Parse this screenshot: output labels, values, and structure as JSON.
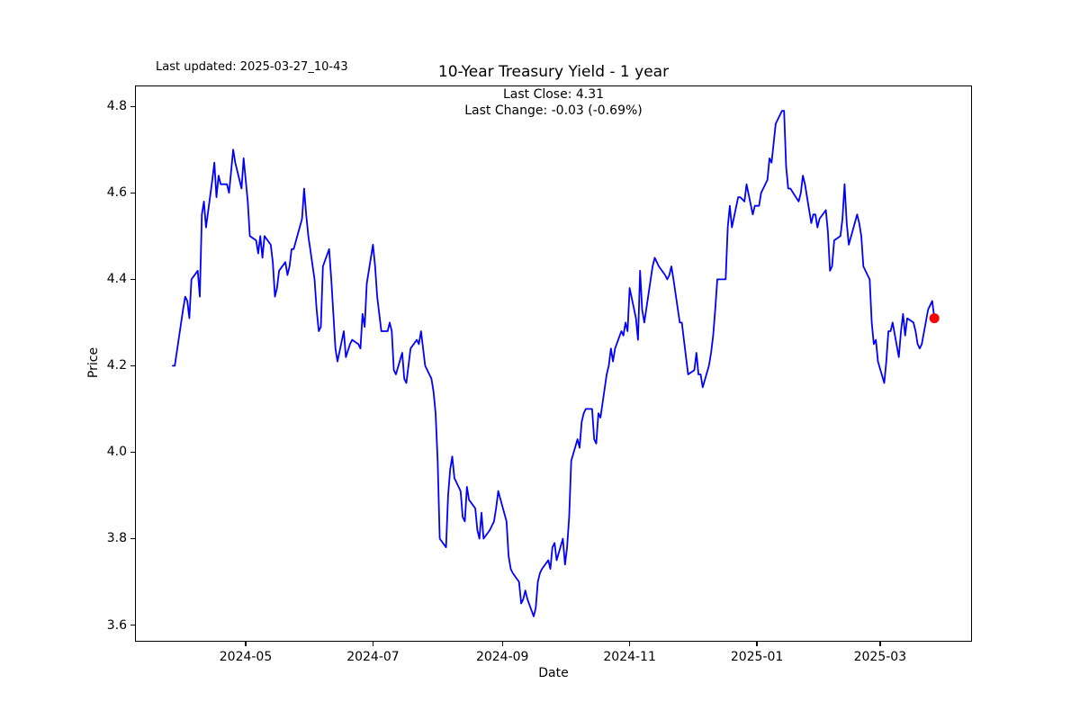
{
  "header": {
    "last_updated": "Last updated: 2025-03-27_10-43",
    "title": "10-Year Treasury Yield - 1 year",
    "subtitle_line1": "Last Close: 4.31",
    "subtitle_line2": "Last Change: -0.03 (-0.69%)"
  },
  "chart_data": {
    "type": "line",
    "title": "10-Year Treasury Yield - 1 year",
    "xlabel": "Date",
    "ylabel": "Price",
    "legend": "none",
    "grid": false,
    "line_color": "#0000ff",
    "marker_color": "#ff0000",
    "last_close": 4.31,
    "last_change": -0.03,
    "last_change_pct": "-0.69%",
    "x_range": [
      "2024-03-27",
      "2025-03-27"
    ],
    "x_margin_frac": 0.045,
    "ylim": [
      3.5615,
      4.8485
    ],
    "y_ticks": [
      {
        "value": 4.8,
        "label": "4.8"
      },
      {
        "value": 4.6,
        "label": "4.6"
      },
      {
        "value": 4.4,
        "label": "4.4"
      },
      {
        "value": 4.2,
        "label": "4.2"
      },
      {
        "value": 4.0,
        "label": "4.0"
      },
      {
        "value": 3.8,
        "label": "3.8"
      },
      {
        "value": 3.6,
        "label": "3.6"
      }
    ],
    "x_ticks": [
      {
        "date": "2024-05-01",
        "label": "2024-05"
      },
      {
        "date": "2024-07-01",
        "label": "2024-07"
      },
      {
        "date": "2024-09-01",
        "label": "2024-09"
      },
      {
        "date": "2024-11-01",
        "label": "2024-11"
      },
      {
        "date": "2025-01-01",
        "label": "2025-01"
      },
      {
        "date": "2025-03-01",
        "label": "2025-03"
      }
    ],
    "points": [
      [
        "2024-03-27",
        4.2
      ],
      [
        "2024-03-28",
        4.2
      ],
      [
        "2024-04-01",
        4.33
      ],
      [
        "2024-04-02",
        4.36
      ],
      [
        "2024-04-03",
        4.35
      ],
      [
        "2024-04-04",
        4.31
      ],
      [
        "2024-04-05",
        4.4
      ],
      [
        "2024-04-08",
        4.42
      ],
      [
        "2024-04-09",
        4.36
      ],
      [
        "2024-04-10",
        4.55
      ],
      [
        "2024-04-11",
        4.58
      ],
      [
        "2024-04-12",
        4.52
      ],
      [
        "2024-04-15",
        4.63
      ],
      [
        "2024-04-16",
        4.67
      ],
      [
        "2024-04-17",
        4.59
      ],
      [
        "2024-04-18",
        4.64
      ],
      [
        "2024-04-19",
        4.62
      ],
      [
        "2024-04-22",
        4.62
      ],
      [
        "2024-04-23",
        4.6
      ],
      [
        "2024-04-24",
        4.65
      ],
      [
        "2024-04-25",
        4.7
      ],
      [
        "2024-04-26",
        4.67
      ],
      [
        "2024-04-29",
        4.61
      ],
      [
        "2024-04-30",
        4.68
      ],
      [
        "2024-05-01",
        4.63
      ],
      [
        "2024-05-02",
        4.58
      ],
      [
        "2024-05-03",
        4.5
      ],
      [
        "2024-05-06",
        4.49
      ],
      [
        "2024-05-07",
        4.46
      ],
      [
        "2024-05-08",
        4.5
      ],
      [
        "2024-05-09",
        4.45
      ],
      [
        "2024-05-10",
        4.5
      ],
      [
        "2024-05-13",
        4.48
      ],
      [
        "2024-05-14",
        4.44
      ],
      [
        "2024-05-15",
        4.36
      ],
      [
        "2024-05-16",
        4.38
      ],
      [
        "2024-05-17",
        4.42
      ],
      [
        "2024-05-20",
        4.44
      ],
      [
        "2024-05-21",
        4.41
      ],
      [
        "2024-05-22",
        4.43
      ],
      [
        "2024-05-23",
        4.47
      ],
      [
        "2024-05-24",
        4.47
      ],
      [
        "2024-05-28",
        4.54
      ],
      [
        "2024-05-29",
        4.61
      ],
      [
        "2024-05-30",
        4.55
      ],
      [
        "2024-05-31",
        4.5
      ],
      [
        "2024-06-03",
        4.4
      ],
      [
        "2024-06-04",
        4.33
      ],
      [
        "2024-06-05",
        4.28
      ],
      [
        "2024-06-06",
        4.29
      ],
      [
        "2024-06-07",
        4.43
      ],
      [
        "2024-06-10",
        4.47
      ],
      [
        "2024-06-11",
        4.4
      ],
      [
        "2024-06-12",
        4.32
      ],
      [
        "2024-06-13",
        4.24
      ],
      [
        "2024-06-14",
        4.21
      ],
      [
        "2024-06-17",
        4.28
      ],
      [
        "2024-06-18",
        4.22
      ],
      [
        "2024-06-20",
        4.25
      ],
      [
        "2024-06-21",
        4.26
      ],
      [
        "2024-06-24",
        4.25
      ],
      [
        "2024-06-25",
        4.24
      ],
      [
        "2024-06-26",
        4.32
      ],
      [
        "2024-06-27",
        4.29
      ],
      [
        "2024-06-28",
        4.39
      ],
      [
        "2024-07-01",
        4.48
      ],
      [
        "2024-07-02",
        4.43
      ],
      [
        "2024-07-03",
        4.36
      ],
      [
        "2024-07-05",
        4.28
      ],
      [
        "2024-07-08",
        4.28
      ],
      [
        "2024-07-09",
        4.3
      ],
      [
        "2024-07-10",
        4.28
      ],
      [
        "2024-07-11",
        4.19
      ],
      [
        "2024-07-12",
        4.18
      ],
      [
        "2024-07-15",
        4.23
      ],
      [
        "2024-07-16",
        4.17
      ],
      [
        "2024-07-17",
        4.16
      ],
      [
        "2024-07-19",
        4.24
      ],
      [
        "2024-07-22",
        4.26
      ],
      [
        "2024-07-23",
        4.25
      ],
      [
        "2024-07-24",
        4.28
      ],
      [
        "2024-07-25",
        4.24
      ],
      [
        "2024-07-26",
        4.2
      ],
      [
        "2024-07-29",
        4.17
      ],
      [
        "2024-07-30",
        4.14
      ],
      [
        "2024-07-31",
        4.09
      ],
      [
        "2024-08-01",
        3.98
      ],
      [
        "2024-08-02",
        3.8
      ],
      [
        "2024-08-05",
        3.78
      ],
      [
        "2024-08-06",
        3.9
      ],
      [
        "2024-08-07",
        3.96
      ],
      [
        "2024-08-08",
        3.99
      ],
      [
        "2024-08-09",
        3.94
      ],
      [
        "2024-08-12",
        3.91
      ],
      [
        "2024-08-13",
        3.85
      ],
      [
        "2024-08-14",
        3.84
      ],
      [
        "2024-08-15",
        3.92
      ],
      [
        "2024-08-16",
        3.89
      ],
      [
        "2024-08-19",
        3.87
      ],
      [
        "2024-08-20",
        3.82
      ],
      [
        "2024-08-21",
        3.8
      ],
      [
        "2024-08-22",
        3.86
      ],
      [
        "2024-08-23",
        3.8
      ],
      [
        "2024-08-26",
        3.82
      ],
      [
        "2024-08-27",
        3.83
      ],
      [
        "2024-08-28",
        3.84
      ],
      [
        "2024-08-29",
        3.87
      ],
      [
        "2024-08-30",
        3.91
      ],
      [
        "2024-09-03",
        3.84
      ],
      [
        "2024-09-04",
        3.76
      ],
      [
        "2024-09-05",
        3.73
      ],
      [
        "2024-09-06",
        3.72
      ],
      [
        "2024-09-09",
        3.7
      ],
      [
        "2024-09-10",
        3.65
      ],
      [
        "2024-09-11",
        3.66
      ],
      [
        "2024-09-12",
        3.68
      ],
      [
        "2024-09-13",
        3.66
      ],
      [
        "2024-09-16",
        3.62
      ],
      [
        "2024-09-17",
        3.64
      ],
      [
        "2024-09-18",
        3.7
      ],
      [
        "2024-09-19",
        3.72
      ],
      [
        "2024-09-20",
        3.73
      ],
      [
        "2024-09-23",
        3.75
      ],
      [
        "2024-09-24",
        3.73
      ],
      [
        "2024-09-25",
        3.78
      ],
      [
        "2024-09-26",
        3.79
      ],
      [
        "2024-09-27",
        3.75
      ],
      [
        "2024-09-30",
        3.8
      ],
      [
        "2024-10-01",
        3.74
      ],
      [
        "2024-10-02",
        3.78
      ],
      [
        "2024-10-03",
        3.85
      ],
      [
        "2024-10-04",
        3.98
      ],
      [
        "2024-10-07",
        4.03
      ],
      [
        "2024-10-08",
        4.01
      ],
      [
        "2024-10-09",
        4.07
      ],
      [
        "2024-10-10",
        4.09
      ],
      [
        "2024-10-11",
        4.1
      ],
      [
        "2024-10-14",
        4.1
      ],
      [
        "2024-10-15",
        4.03
      ],
      [
        "2024-10-16",
        4.02
      ],
      [
        "2024-10-17",
        4.09
      ],
      [
        "2024-10-18",
        4.08
      ],
      [
        "2024-10-21",
        4.18
      ],
      [
        "2024-10-22",
        4.2
      ],
      [
        "2024-10-23",
        4.24
      ],
      [
        "2024-10-24",
        4.21
      ],
      [
        "2024-10-25",
        4.24
      ],
      [
        "2024-10-28",
        4.28
      ],
      [
        "2024-10-29",
        4.27
      ],
      [
        "2024-10-30",
        4.3
      ],
      [
        "2024-10-31",
        4.28
      ],
      [
        "2024-11-01",
        4.38
      ],
      [
        "2024-11-04",
        4.31
      ],
      [
        "2024-11-05",
        4.26
      ],
      [
        "2024-11-06",
        4.42
      ],
      [
        "2024-11-07",
        4.33
      ],
      [
        "2024-11-08",
        4.3
      ],
      [
        "2024-11-12",
        4.43
      ],
      [
        "2024-11-13",
        4.45
      ],
      [
        "2024-11-14",
        4.44
      ],
      [
        "2024-11-15",
        4.43
      ],
      [
        "2024-11-18",
        4.41
      ],
      [
        "2024-11-19",
        4.4
      ],
      [
        "2024-11-20",
        4.41
      ],
      [
        "2024-11-21",
        4.43
      ],
      [
        "2024-11-22",
        4.4
      ],
      [
        "2024-11-25",
        4.3
      ],
      [
        "2024-11-26",
        4.3
      ],
      [
        "2024-11-27",
        4.26
      ],
      [
        "2024-11-29",
        4.18
      ],
      [
        "2024-12-02",
        4.19
      ],
      [
        "2024-12-03",
        4.23
      ],
      [
        "2024-12-04",
        4.18
      ],
      [
        "2024-12-05",
        4.18
      ],
      [
        "2024-12-06",
        4.15
      ],
      [
        "2024-12-09",
        4.2
      ],
      [
        "2024-12-10",
        4.23
      ],
      [
        "2024-12-11",
        4.27
      ],
      [
        "2024-12-12",
        4.33
      ],
      [
        "2024-12-13",
        4.4
      ],
      [
        "2024-12-16",
        4.4
      ],
      [
        "2024-12-17",
        4.4
      ],
      [
        "2024-12-18",
        4.52
      ],
      [
        "2024-12-19",
        4.57
      ],
      [
        "2024-12-20",
        4.52
      ],
      [
        "2024-12-23",
        4.59
      ],
      [
        "2024-12-24",
        4.59
      ],
      [
        "2024-12-26",
        4.58
      ],
      [
        "2024-12-27",
        4.62
      ],
      [
        "2024-12-30",
        4.55
      ],
      [
        "2024-12-31",
        4.57
      ],
      [
        "2025-01-02",
        4.57
      ],
      [
        "2025-01-03",
        4.6
      ],
      [
        "2025-01-06",
        4.63
      ],
      [
        "2025-01-07",
        4.68
      ],
      [
        "2025-01-08",
        4.67
      ],
      [
        "2025-01-10",
        4.76
      ],
      [
        "2025-01-13",
        4.79
      ],
      [
        "2025-01-14",
        4.79
      ],
      [
        "2025-01-15",
        4.66
      ],
      [
        "2025-01-16",
        4.61
      ],
      [
        "2025-01-17",
        4.61
      ],
      [
        "2025-01-21",
        4.58
      ],
      [
        "2025-01-22",
        4.6
      ],
      [
        "2025-01-23",
        4.64
      ],
      [
        "2025-01-24",
        4.62
      ],
      [
        "2025-01-27",
        4.53
      ],
      [
        "2025-01-28",
        4.55
      ],
      [
        "2025-01-29",
        4.55
      ],
      [
        "2025-01-30",
        4.52
      ],
      [
        "2025-01-31",
        4.54
      ],
      [
        "2025-02-03",
        4.56
      ],
      [
        "2025-02-04",
        4.51
      ],
      [
        "2025-02-05",
        4.42
      ],
      [
        "2025-02-06",
        4.43
      ],
      [
        "2025-02-07",
        4.49
      ],
      [
        "2025-02-10",
        4.5
      ],
      [
        "2025-02-11",
        4.54
      ],
      [
        "2025-02-12",
        4.62
      ],
      [
        "2025-02-13",
        4.53
      ],
      [
        "2025-02-14",
        4.48
      ],
      [
        "2025-02-18",
        4.55
      ],
      [
        "2025-02-19",
        4.53
      ],
      [
        "2025-02-20",
        4.5
      ],
      [
        "2025-02-21",
        4.43
      ],
      [
        "2025-02-24",
        4.4
      ],
      [
        "2025-02-25",
        4.3
      ],
      [
        "2025-02-26",
        4.25
      ],
      [
        "2025-02-27",
        4.26
      ],
      [
        "2025-02-28",
        4.21
      ],
      [
        "2025-03-03",
        4.16
      ],
      [
        "2025-03-04",
        4.21
      ],
      [
        "2025-03-05",
        4.28
      ],
      [
        "2025-03-06",
        4.28
      ],
      [
        "2025-03-07",
        4.3
      ],
      [
        "2025-03-10",
        4.22
      ],
      [
        "2025-03-11",
        4.28
      ],
      [
        "2025-03-12",
        4.32
      ],
      [
        "2025-03-13",
        4.27
      ],
      [
        "2025-03-14",
        4.31
      ],
      [
        "2025-03-17",
        4.3
      ],
      [
        "2025-03-18",
        4.28
      ],
      [
        "2025-03-19",
        4.25
      ],
      [
        "2025-03-20",
        4.24
      ],
      [
        "2025-03-21",
        4.25
      ],
      [
        "2025-03-24",
        4.33
      ],
      [
        "2025-03-25",
        4.34
      ],
      [
        "2025-03-26",
        4.35
      ],
      [
        "2025-03-27",
        4.31
      ]
    ]
  }
}
